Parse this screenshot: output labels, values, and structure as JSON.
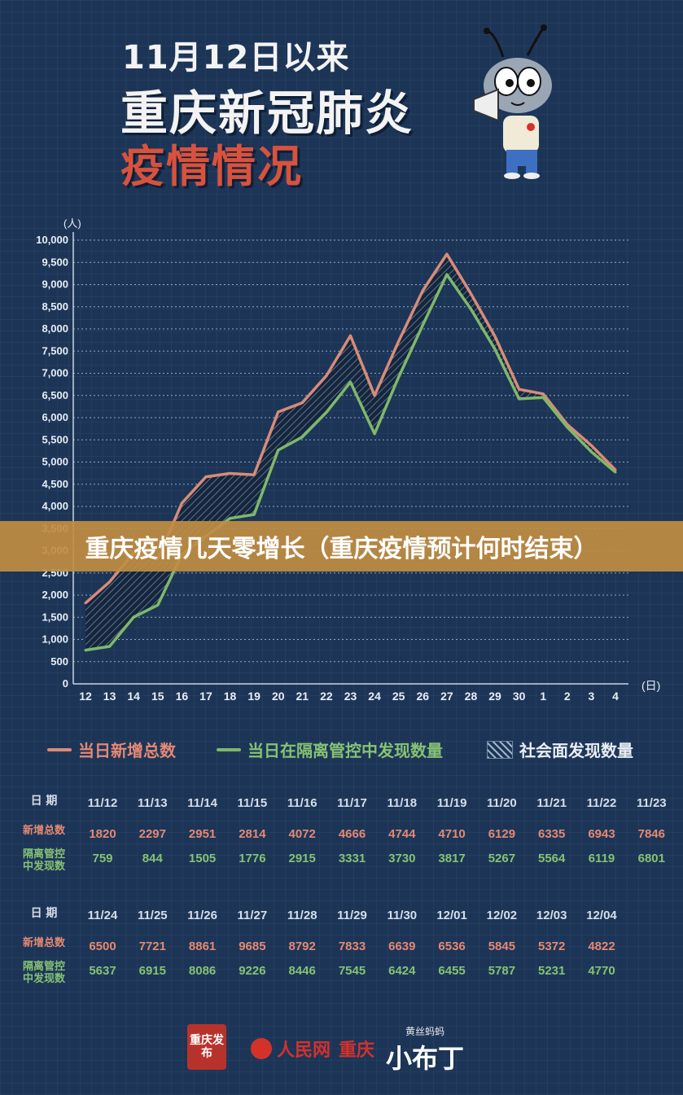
{
  "header": {
    "line1": "11月12日以来",
    "line2": "重庆新冠肺炎",
    "line3": "疫情情况"
  },
  "banner": {
    "text": "重庆疫情几天零增长（重庆疫情预计何时结束）"
  },
  "colors": {
    "total": "#d98b78",
    "isolated": "#7fb86a",
    "background": "#1c3557",
    "banner": "#c18d42"
  },
  "chart_data": {
    "type": "line",
    "y_unit_label": "(人)",
    "x_unit_label": "(日)",
    "ylim": [
      0,
      10000
    ],
    "yticks": [
      "0",
      "500",
      "1,000",
      "1,500",
      "2,000",
      "2,500",
      "3,000",
      "3,500",
      "4,000",
      "4,500",
      "5,000",
      "5,500",
      "6,000",
      "6,500",
      "7,000",
      "7,500",
      "8,000",
      "8,500",
      "9,000",
      "9,500",
      "10,000"
    ],
    "categories": [
      "12",
      "13",
      "14",
      "15",
      "16",
      "17",
      "18",
      "19",
      "20",
      "21",
      "22",
      "23",
      "24",
      "25",
      "26",
      "27",
      "28",
      "29",
      "30",
      "1",
      "2",
      "3",
      "4"
    ],
    "grid": true,
    "series": [
      {
        "name": "当日新增总数",
        "color": "#d98b78",
        "values": [
          1820,
          2297,
          2951,
          2814,
          4072,
          4666,
          4744,
          4710,
          6129,
          6335,
          6943,
          7846,
          6500,
          7721,
          8861,
          9685,
          8792,
          7833,
          6639,
          6536,
          5845,
          5372,
          4822
        ]
      },
      {
        "name": "当日在隔离管控中发现数量",
        "color": "#7fb86a",
        "values": [
          759,
          844,
          1505,
          1776,
          2915,
          3331,
          3730,
          3817,
          5267,
          5564,
          6119,
          6801,
          5637,
          6915,
          8086,
          9226,
          8446,
          7545,
          6424,
          6455,
          5787,
          5231,
          4770
        ]
      }
    ],
    "area_between_label": "社会面发现数量"
  },
  "legend": {
    "total": "当日新增总数",
    "isolated": "当日在隔离管控中发现数量",
    "community": "社会面发现数量"
  },
  "table": {
    "date_label": "日 期",
    "new_label": "新增总数",
    "iso_label_1": "隔离管控",
    "iso_label_2": "中发现数",
    "block1": {
      "dates": [
        "11/12",
        "11/13",
        "11/14",
        "11/15",
        "11/16",
        "11/17",
        "11/18",
        "11/19",
        "11/20",
        "11/21",
        "11/22",
        "11/23"
      ],
      "new": [
        "1820",
        "2297",
        "2951",
        "2814",
        "4072",
        "4666",
        "4744",
        "4710",
        "6129",
        "6335",
        "6943",
        "7846"
      ],
      "iso": [
        "759",
        "844",
        "1505",
        "1776",
        "2915",
        "3331",
        "3730",
        "3817",
        "5267",
        "5564",
        "6119",
        "6801"
      ]
    },
    "block2": {
      "dates": [
        "11/24",
        "11/25",
        "11/26",
        "11/27",
        "11/28",
        "11/29",
        "11/30",
        "12/01",
        "12/02",
        "12/03",
        "12/04"
      ],
      "new": [
        "6500",
        "7721",
        "8861",
        "9685",
        "8792",
        "7833",
        "6639",
        "6536",
        "5845",
        "5372",
        "4822"
      ],
      "iso": [
        "5637",
        "6915",
        "8086",
        "9226",
        "8446",
        "7545",
        "6424",
        "6455",
        "5787",
        "5231",
        "4770"
      ]
    }
  },
  "footer": {
    "seal_text": "重庆发布",
    "rmw_text": "人民网",
    "rmw_region": "重庆",
    "xbd_top": "黄丝蚂蚂",
    "xbd_main": "小布丁"
  }
}
